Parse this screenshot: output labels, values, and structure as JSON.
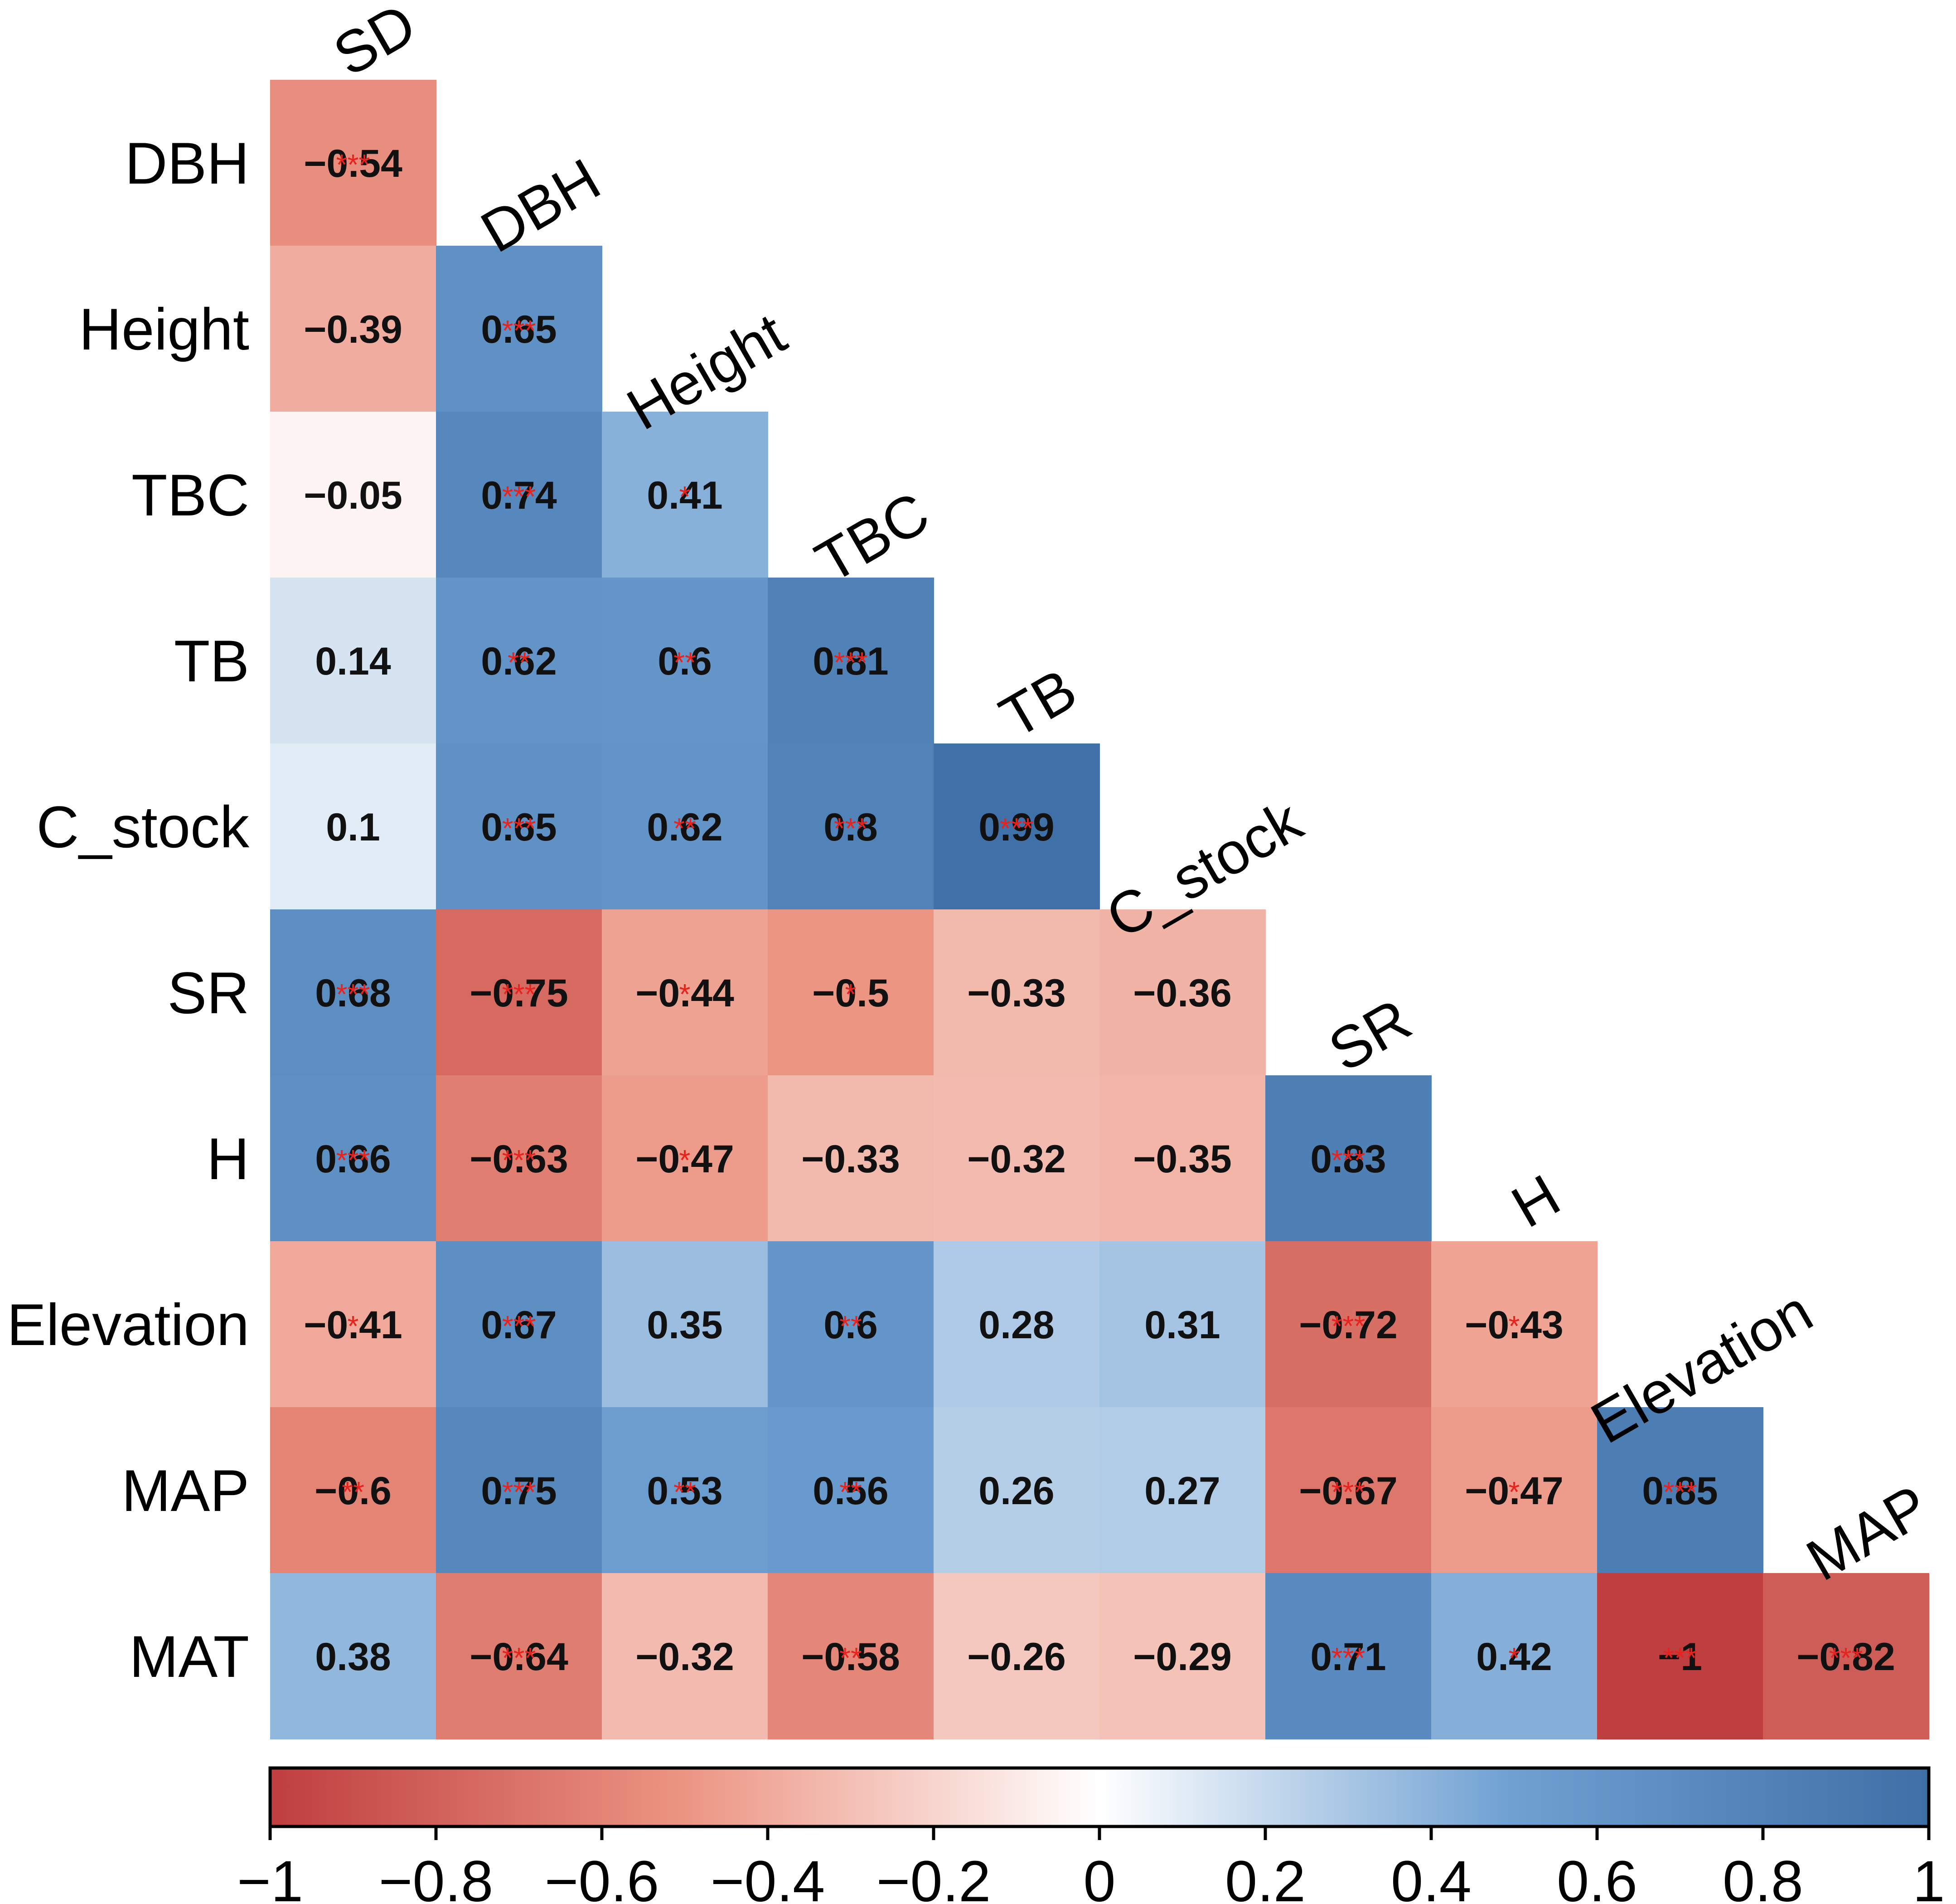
{
  "chart_data": {
    "type": "heatmap",
    "title": "",
    "variables": [
      "SD",
      "DBH",
      "Height",
      "TBC",
      "TB",
      "C_stock",
      "SR",
      "H",
      "Elevation",
      "MAP",
      "MAT"
    ],
    "row_labels": [
      "DBH",
      "Height",
      "TBC",
      "TB",
      "C_stock",
      "SR",
      "H",
      "Elevation",
      "MAP",
      "MAT"
    ],
    "column_labels": [
      "SD",
      "DBH",
      "Height",
      "TBC",
      "TB",
      "C_stock",
      "SR",
      "H",
      "Elevation",
      "MAP"
    ],
    "lower_triangle": [
      {
        "row": "DBH",
        "cells": [
          {
            "v": "−0.54",
            "s": "***"
          }
        ]
      },
      {
        "row": "Height",
        "cells": [
          {
            "v": "−0.39",
            "s": ""
          },
          {
            "v": "0.65",
            "s": "***"
          }
        ]
      },
      {
        "row": "TBC",
        "cells": [
          {
            "v": "−0.05",
            "s": ""
          },
          {
            "v": "0.74",
            "s": "***"
          },
          {
            "v": "0.41",
            "s": "*"
          }
        ]
      },
      {
        "row": "TB",
        "cells": [
          {
            "v": "0.14",
            "s": ""
          },
          {
            "v": "0.62",
            "s": "**"
          },
          {
            "v": "0.6",
            "s": "**"
          },
          {
            "v": "0.81",
            "s": "***"
          }
        ]
      },
      {
        "row": "C_stock",
        "cells": [
          {
            "v": "0.1",
            "s": ""
          },
          {
            "v": "0.65",
            "s": "***"
          },
          {
            "v": "0.62",
            "s": "**"
          },
          {
            "v": "0.8",
            "s": "***"
          },
          {
            "v": "0.99",
            "s": "***"
          }
        ]
      },
      {
        "row": "SR",
        "cells": [
          {
            "v": "0.68",
            "s": "***"
          },
          {
            "v": "−0.75",
            "s": "***"
          },
          {
            "v": "−0.44",
            "s": "*"
          },
          {
            "v": "−0.5",
            "s": "*"
          },
          {
            "v": "−0.33",
            "s": ""
          },
          {
            "v": "−0.36",
            "s": ""
          }
        ]
      },
      {
        "row": "H",
        "cells": [
          {
            "v": "0.66",
            "s": "***"
          },
          {
            "v": "−0.63",
            "s": "***"
          },
          {
            "v": "−0.47",
            "s": "*"
          },
          {
            "v": "−0.33",
            "s": ""
          },
          {
            "v": "−0.32",
            "s": ""
          },
          {
            "v": "−0.35",
            "s": ""
          },
          {
            "v": "0.83",
            "s": "***"
          }
        ]
      },
      {
        "row": "Elevation",
        "cells": [
          {
            "v": "−0.41",
            "s": "*"
          },
          {
            "v": "0.67",
            "s": "***"
          },
          {
            "v": "0.35",
            "s": ""
          },
          {
            "v": "0.6",
            "s": "**"
          },
          {
            "v": "0.28",
            "s": ""
          },
          {
            "v": "0.31",
            "s": ""
          },
          {
            "v": "−0.72",
            "s": "***"
          },
          {
            "v": "−0.43",
            "s": "*"
          }
        ]
      },
      {
        "row": "MAP",
        "cells": [
          {
            "v": "−0.6",
            "s": "**"
          },
          {
            "v": "0.75",
            "s": "***"
          },
          {
            "v": "0.53",
            "s": "**"
          },
          {
            "v": "0.56",
            "s": "**"
          },
          {
            "v": "0.26",
            "s": ""
          },
          {
            "v": "0.27",
            "s": ""
          },
          {
            "v": "−0.67",
            "s": "***"
          },
          {
            "v": "−0.47",
            "s": "*"
          },
          {
            "v": "0.85",
            "s": "***"
          }
        ]
      },
      {
        "row": "MAT",
        "cells": [
          {
            "v": "0.38",
            "s": ""
          },
          {
            "v": "−0.64",
            "s": "***"
          },
          {
            "v": "−0.32",
            "s": ""
          },
          {
            "v": "−0.58",
            "s": "**"
          },
          {
            "v": "−0.26",
            "s": ""
          },
          {
            "v": "−0.29",
            "s": ""
          },
          {
            "v": "0.71",
            "s": "***"
          },
          {
            "v": "0.42",
            "s": "*"
          },
          {
            "v": "−1",
            "s": "***"
          },
          {
            "v": "−0.82",
            "s": "***"
          }
        ]
      }
    ],
    "colorbar": {
      "range": [
        -1,
        1
      ],
      "ticks": [
        "−1",
        "−0.8",
        "−0.6",
        "−0.4",
        "−0.2",
        "0",
        "0.2",
        "0.4",
        "0.6",
        "0.8",
        "1"
      ],
      "colors": {
        "negative": "#b2182b",
        "mid_negative": "#ef8a62",
        "zero": "#ffffff",
        "mid_positive": "#67a9cf",
        "positive": "#2166ac"
      }
    },
    "significance_color": "#e8221c"
  }
}
